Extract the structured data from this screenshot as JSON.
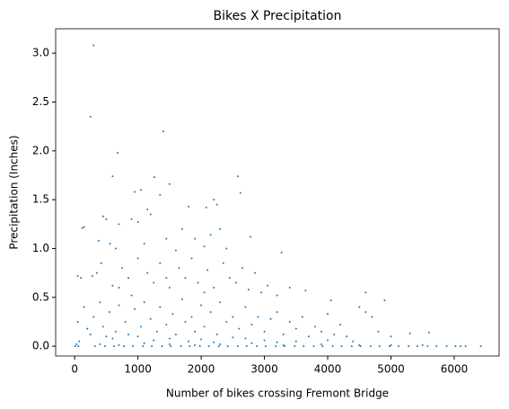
{
  "chart_data": {
    "type": "scatter",
    "title": "Bikes X Precipitation",
    "x_label": "Number of bikes crossing Fremont Bridge",
    "y_label": "Precipitation (Inches)",
    "color": "#1f77b4",
    "xlim": [
      -300,
      6710
    ],
    "ylim": [
      -0.1,
      3.25
    ],
    "xticks": [
      0,
      1000,
      2000,
      3000,
      4000,
      5000,
      6000
    ],
    "yticks": [
      {
        "value": 0,
        "label": "0.0"
      },
      0.5,
      {
        "value": 1,
        "label": "1.0"
      },
      1.5,
      {
        "value": 2,
        "label": "2.0"
      },
      2.5,
      {
        "value": 3,
        "label": "3.0"
      }
    ],
    "x": [
      300,
      250,
      1400,
      680,
      600,
      2580,
      2620,
      1260,
      1050,
      1500,
      950,
      1350,
      2200,
      2250,
      2080,
      1150,
      1800,
      900,
      450,
      500,
      1000,
      1200,
      700,
      150,
      120,
      1700,
      2300,
      2150,
      1900,
      2780,
      1450,
      560,
      650,
      1100,
      1600,
      2050,
      2400,
      3270,
      380,
      50,
      100,
      280,
      350,
      420,
      600,
      750,
      850,
      1000,
      1150,
      1250,
      1350,
      1500,
      1650,
      1750,
      1850,
      1950,
      2100,
      2200,
      2350,
      2450,
      2550,
      2650,
      2750,
      2850,
      2950,
      3050,
      3200,
      3400,
      3650,
      4050,
      4600,
      4900,
      2050,
      900,
      700,
      1450,
      50,
      150,
      200,
      300,
      400,
      450,
      550,
      650,
      700,
      800,
      850,
      950,
      1050,
      1100,
      1200,
      1300,
      1350,
      1450,
      1550,
      1600,
      1700,
      1750,
      1850,
      1900,
      2000,
      2050,
      2150,
      2250,
      2300,
      2400,
      2500,
      2600,
      2700,
      2800,
      2900,
      3000,
      3100,
      3200,
      3300,
      3400,
      3500,
      3600,
      3700,
      3800,
      3900,
      4000,
      4100,
      4200,
      4300,
      4500,
      4600,
      4700,
      4800,
      5000,
      5300,
      5600,
      500,
      1000,
      1500,
      2000,
      2500,
      3000,
      3500,
      4000,
      250,
      600,
      1250,
      1800,
      2200,
      2700,
      3200,
      4400,
      30,
      70,
      320,
      480,
      620,
      780,
      920,
      1080,
      1220,
      1380,
      1520,
      1680,
      1820,
      1980,
      2120,
      2280,
      2420,
      2580,
      2720,
      2880,
      3020,
      3180,
      3320,
      3480,
      3620,
      3780,
      3920,
      4080,
      4220,
      4380,
      4520,
      4680,
      4820,
      4980,
      5120,
      5280,
      5420,
      5580,
      5720,
      5880,
      6020,
      6180,
      6420,
      10,
      60,
      400,
      700,
      1100,
      1500,
      1900,
      2300,
      2800,
      3300,
      3900,
      4500,
      5000,
      5500,
      6100
    ],
    "y": [
      3.08,
      2.35,
      2.2,
      1.98,
      1.74,
      1.74,
      1.57,
      1.73,
      1.6,
      1.66,
      1.58,
      1.55,
      1.5,
      1.45,
      1.42,
      1.4,
      1.43,
      1.3,
      1.33,
      1.3,
      1.27,
      1.35,
      1.25,
      1.22,
      1.21,
      1.2,
      1.2,
      1.14,
      1.1,
      1.12,
      1.1,
      1.05,
      1.0,
      1.05,
      0.98,
      1.02,
      1.0,
      0.96,
      1.08,
      0.72,
      0.7,
      0.72,
      0.75,
      0.85,
      0.62,
      0.8,
      0.7,
      0.9,
      0.75,
      0.65,
      0.85,
      0.6,
      0.8,
      0.7,
      0.9,
      0.65,
      0.78,
      0.6,
      0.85,
      0.7,
      0.65,
      0.8,
      0.58,
      0.75,
      0.55,
      0.62,
      0.52,
      0.6,
      0.57,
      0.47,
      0.55,
      0.47,
      0.55,
      0.52,
      0.6,
      0.7,
      0.25,
      0.4,
      0.18,
      0.3,
      0.45,
      0.2,
      0.35,
      0.15,
      0.42,
      0.25,
      0.12,
      0.38,
      0.2,
      0.45,
      0.28,
      0.15,
      0.4,
      0.22,
      0.33,
      0.12,
      0.48,
      0.25,
      0.3,
      0.15,
      0.42,
      0.2,
      0.35,
      0.12,
      0.45,
      0.25,
      0.3,
      0.18,
      0.4,
      0.22,
      0.3,
      0.15,
      0.28,
      0.35,
      0.12,
      0.25,
      0.18,
      0.3,
      0.1,
      0.2,
      0.15,
      0.33,
      0.12,
      0.22,
      0.1,
      0.4,
      0.35,
      0.3,
      0.15,
      0.1,
      0.13,
      0.14,
      0.1,
      0.1,
      0.08,
      0.07,
      0.09,
      0.06,
      0.05,
      0.06,
      0.12,
      0.08,
      0.06,
      0.05,
      0.04,
      0.08,
      0.04,
      0.05,
      0.02,
      0.05,
      0,
      0,
      0,
      0,
      0,
      0,
      0,
      0,
      0,
      0,
      0,
      0,
      0,
      0,
      0,
      0,
      0,
      0,
      0,
      0,
      0,
      0,
      0,
      0,
      0,
      0,
      0,
      0,
      0,
      0,
      0,
      0,
      0,
      0,
      0,
      0,
      0,
      0,
      0,
      0,
      0,
      0,
      0,
      0.02,
      0.01,
      0.03,
      0.02,
      0.01,
      0.02,
      0.03,
      0.01,
      0.02,
      0.01,
      0.01,
      0.01,
      0
    ]
  }
}
